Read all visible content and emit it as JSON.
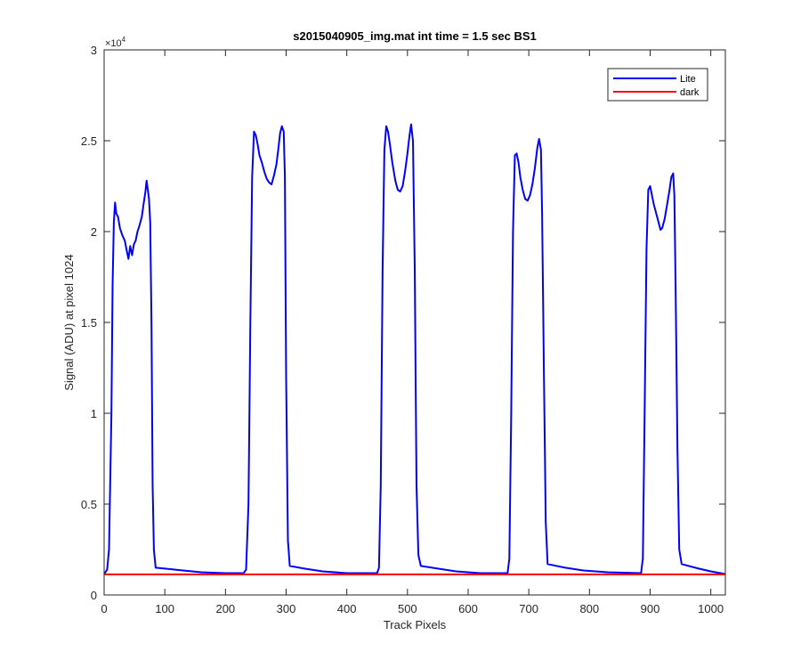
{
  "chart_data": {
    "type": "line",
    "title": "s2015040905_img.mat int time = 1.5 sec   BS1",
    "xlabel": "Track Pixels",
    "ylabel": "Signal (ADU) at pixel 1024",
    "y_exponent_base": "×10",
    "y_exponent_power": "4",
    "xlim": [
      0,
      1024
    ],
    "ylim": [
      0,
      30000
    ],
    "x_ticks": [
      0,
      100,
      200,
      300,
      400,
      500,
      600,
      700,
      800,
      900,
      1000
    ],
    "x_tick_labels": [
      "0",
      "100",
      "200",
      "300",
      "400",
      "500",
      "600",
      "700",
      "800",
      "900",
      "1000"
    ],
    "y_ticks": [
      0,
      5000,
      10000,
      15000,
      20000,
      25000,
      30000
    ],
    "y_tick_labels": [
      "0",
      "0.5",
      "1",
      "1.5",
      "2",
      "2.5",
      "3"
    ],
    "grid": false,
    "legend_position": "top-right",
    "series": [
      {
        "name": "Lite",
        "color": "#0000ff",
        "points": [
          [
            0,
            1150
          ],
          [
            5,
            1400
          ],
          [
            8,
            2500
          ],
          [
            12,
            10000
          ],
          [
            14,
            17000
          ],
          [
            16,
            20500
          ],
          [
            18,
            21600
          ],
          [
            20,
            21000
          ],
          [
            23,
            20800
          ],
          [
            26,
            20200
          ],
          [
            30,
            19800
          ],
          [
            34,
            19500
          ],
          [
            37,
            19000
          ],
          [
            40,
            18500
          ],
          [
            43,
            19200
          ],
          [
            46,
            18700
          ],
          [
            49,
            19300
          ],
          [
            52,
            19500
          ],
          [
            55,
            20000
          ],
          [
            58,
            20300
          ],
          [
            62,
            20800
          ],
          [
            65,
            21500
          ],
          [
            68,
            22200
          ],
          [
            70,
            22800
          ],
          [
            72,
            22300
          ],
          [
            74,
            21800
          ],
          [
            76,
            20500
          ],
          [
            78,
            15000
          ],
          [
            80,
            6000
          ],
          [
            82,
            2500
          ],
          [
            85,
            1500
          ],
          [
            100,
            1450
          ],
          [
            130,
            1350
          ],
          [
            160,
            1250
          ],
          [
            200,
            1200
          ],
          [
            230,
            1200
          ],
          [
            234,
            1400
          ],
          [
            238,
            5000
          ],
          [
            241,
            15000
          ],
          [
            244,
            23000
          ],
          [
            247,
            25500
          ],
          [
            250,
            25300
          ],
          [
            253,
            24800
          ],
          [
            256,
            24200
          ],
          [
            260,
            23800
          ],
          [
            264,
            23300
          ],
          [
            268,
            22900
          ],
          [
            272,
            22700
          ],
          [
            276,
            22600
          ],
          [
            280,
            23100
          ],
          [
            284,
            23700
          ],
          [
            287,
            24500
          ],
          [
            290,
            25400
          ],
          [
            293,
            25800
          ],
          [
            296,
            25500
          ],
          [
            298,
            23000
          ],
          [
            300,
            12000
          ],
          [
            303,
            3000
          ],
          [
            306,
            1600
          ],
          [
            330,
            1450
          ],
          [
            360,
            1300
          ],
          [
            400,
            1200
          ],
          [
            450,
            1200
          ],
          [
            453,
            1500
          ],
          [
            456,
            6000
          ],
          [
            459,
            18000
          ],
          [
            462,
            24500
          ],
          [
            465,
            25800
          ],
          [
            468,
            25500
          ],
          [
            471,
            24800
          ],
          [
            475,
            23800
          ],
          [
            480,
            22800
          ],
          [
            484,
            22300
          ],
          [
            488,
            22200
          ],
          [
            492,
            22500
          ],
          [
            496,
            23300
          ],
          [
            500,
            24300
          ],
          [
            503,
            25200
          ],
          [
            506,
            25900
          ],
          [
            509,
            25000
          ],
          [
            512,
            18000
          ],
          [
            515,
            6000
          ],
          [
            518,
            2200
          ],
          [
            522,
            1600
          ],
          [
            550,
            1450
          ],
          [
            580,
            1300
          ],
          [
            620,
            1200
          ],
          [
            665,
            1200
          ],
          [
            668,
            2000
          ],
          [
            671,
            10000
          ],
          [
            674,
            20000
          ],
          [
            677,
            24200
          ],
          [
            680,
            24300
          ],
          [
            683,
            23800
          ],
          [
            686,
            23000
          ],
          [
            690,
            22300
          ],
          [
            694,
            21800
          ],
          [
            698,
            21700
          ],
          [
            702,
            22000
          ],
          [
            706,
            22600
          ],
          [
            710,
            23500
          ],
          [
            714,
            24600
          ],
          [
            717,
            25100
          ],
          [
            720,
            24500
          ],
          [
            722,
            21000
          ],
          [
            725,
            12000
          ],
          [
            728,
            4000
          ],
          [
            731,
            1700
          ],
          [
            760,
            1500
          ],
          [
            790,
            1350
          ],
          [
            830,
            1250
          ],
          [
            885,
            1200
          ],
          [
            888,
            2000
          ],
          [
            891,
            10000
          ],
          [
            894,
            19000
          ],
          [
            897,
            22300
          ],
          [
            900,
            22500
          ],
          [
            903,
            22000
          ],
          [
            906,
            21500
          ],
          [
            910,
            21000
          ],
          [
            914,
            20500
          ],
          [
            917,
            20100
          ],
          [
            920,
            20200
          ],
          [
            924,
            20700
          ],
          [
            928,
            21500
          ],
          [
            932,
            22300
          ],
          [
            935,
            23000
          ],
          [
            938,
            23200
          ],
          [
            940,
            22000
          ],
          [
            942,
            17000
          ],
          [
            945,
            8000
          ],
          [
            948,
            2500
          ],
          [
            952,
            1700
          ],
          [
            980,
            1450
          ],
          [
            1000,
            1300
          ],
          [
            1024,
            1150
          ]
        ]
      },
      {
        "name": "dark",
        "color": "#ff0000",
        "points": [
          [
            0,
            1130
          ],
          [
            256,
            1130
          ],
          [
            512,
            1130
          ],
          [
            768,
            1130
          ],
          [
            1024,
            1130
          ]
        ]
      }
    ]
  }
}
